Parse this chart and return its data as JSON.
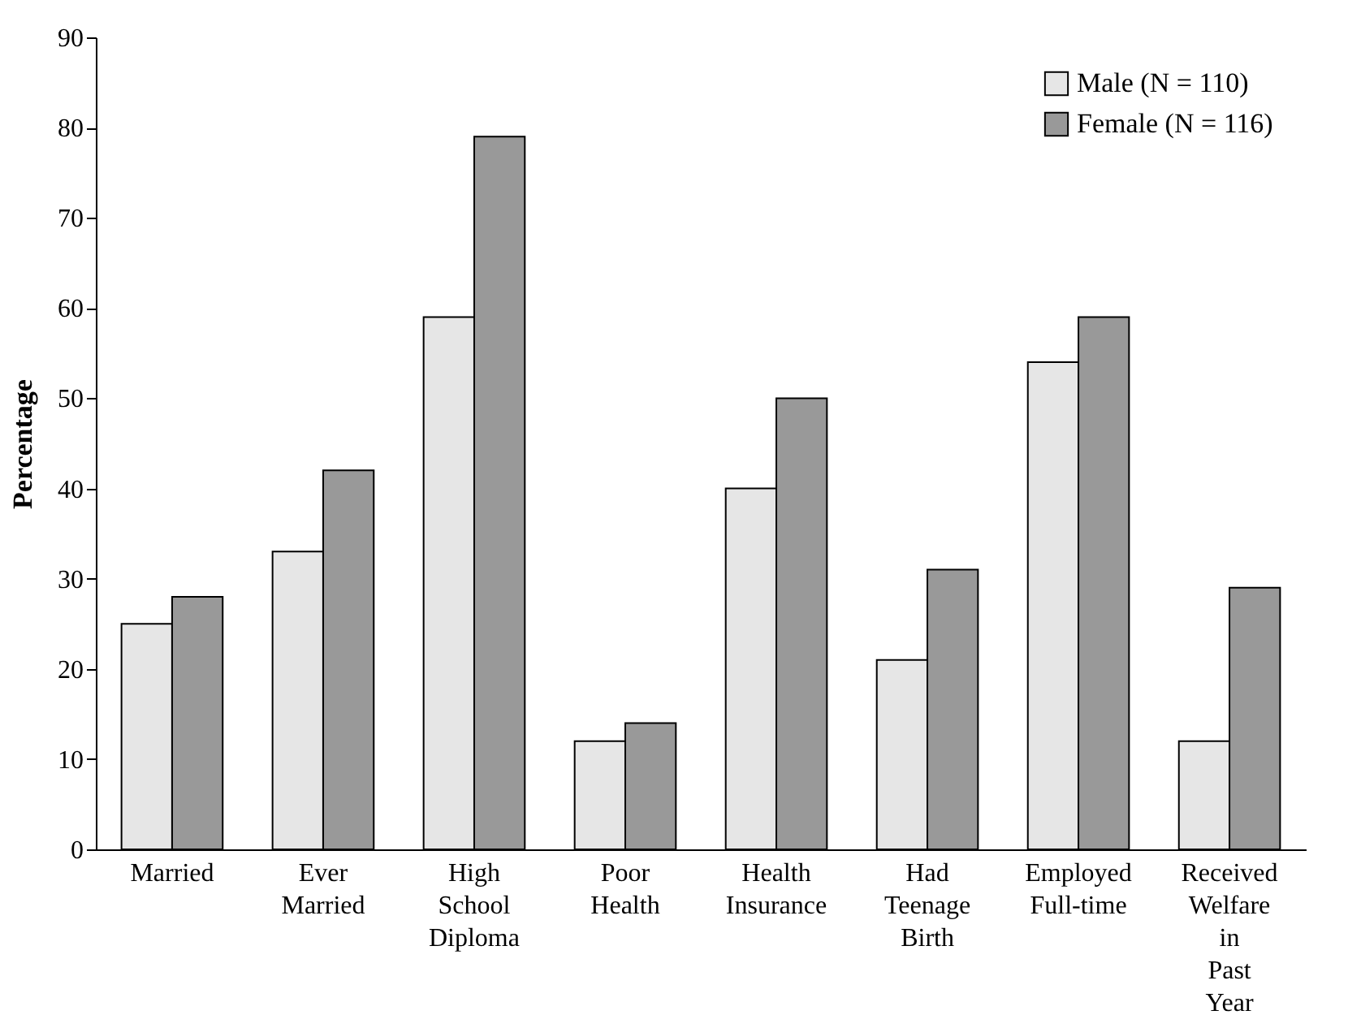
{
  "chart_data": {
    "type": "bar",
    "ylabel": "Percentage",
    "categories": [
      "Married",
      "Ever Married",
      "High School Diploma",
      "Poor Health",
      "Health Insurance",
      "Had Teenage Birth",
      "Employed Full-time",
      "Received Welfare in Past Year"
    ],
    "series": [
      {
        "name": "Male (N = 110)",
        "color": "#e6e6e6",
        "values": [
          25,
          33,
          59,
          12,
          40,
          21,
          54,
          12
        ]
      },
      {
        "name": "Female (N = 116)",
        "color": "#999999",
        "values": [
          28,
          42,
          79,
          14,
          50,
          31,
          59,
          29
        ]
      }
    ],
    "ylim": [
      0,
      90
    ],
    "yticks": [
      0,
      10,
      20,
      30,
      40,
      50,
      60,
      70,
      80,
      90
    ],
    "grid": false,
    "legend": "top right"
  }
}
